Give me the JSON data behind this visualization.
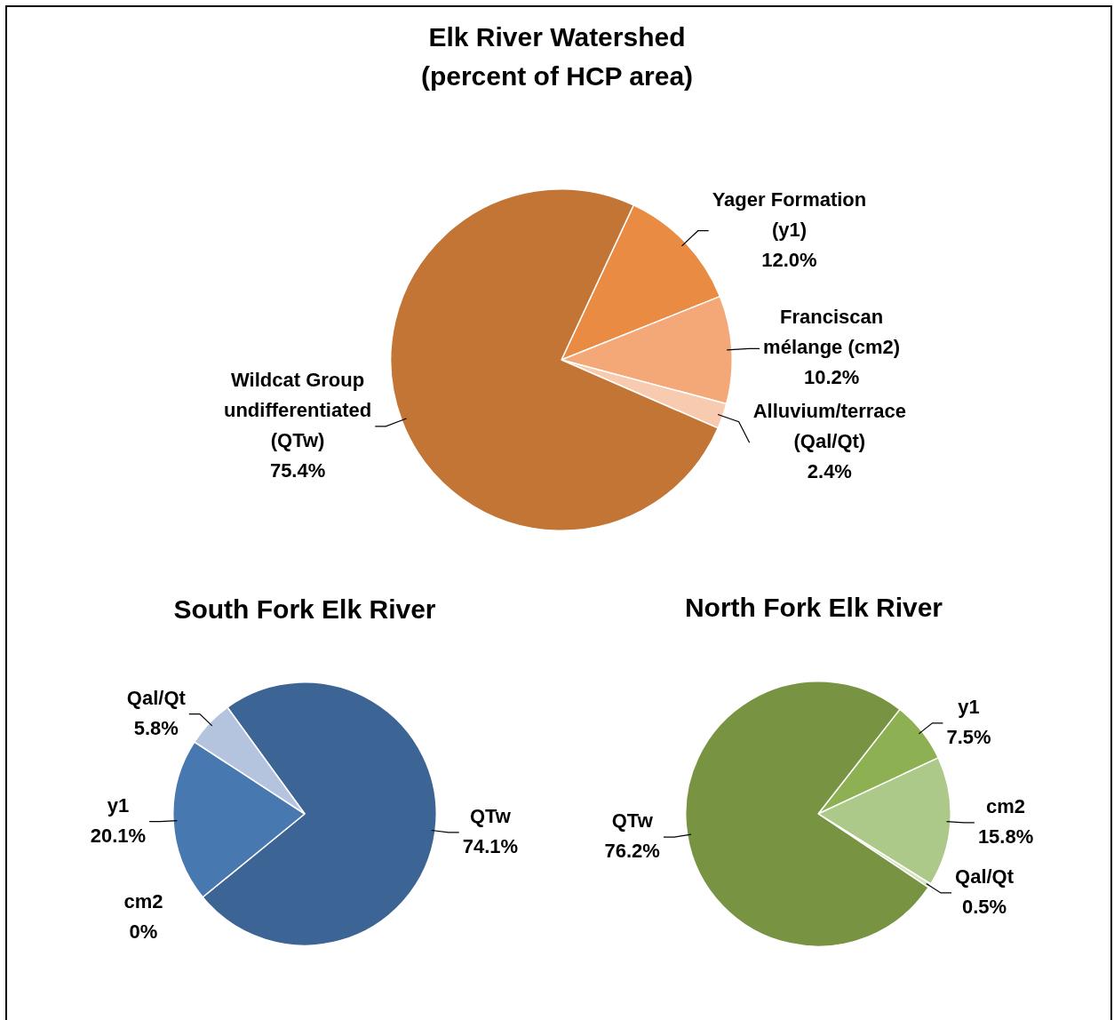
{
  "chart_data": [
    {
      "type": "pie",
      "title": "Elk River Watershed",
      "subtitle": "(percent of HCP area)",
      "categories": [
        "Yager Formation (y1)",
        "Franciscan mélange (cm2)",
        "Alluvium/terrace (Qal/Qt)",
        "Wildcat Group undifferentiated (QTw)"
      ],
      "values": [
        12.0,
        10.2,
        2.4,
        75.4
      ],
      "value_labels": [
        "12.0%",
        "10.2%",
        "2.4%",
        "75.4%"
      ],
      "colors": [
        "#e98b42",
        "#f5a877",
        "#f8cbb0",
        "#c27535"
      ],
      "legend": false
    },
    {
      "type": "pie",
      "title": "South Fork Elk River",
      "categories": [
        "QTw",
        "cm2",
        "y1",
        "Qal/Qt"
      ],
      "values": [
        74.1,
        0,
        20.1,
        5.8
      ],
      "value_labels": [
        "74.1%",
        "0%",
        "20.1%",
        "5.8%"
      ],
      "colors": [
        "#3c6494",
        "#6f94c8",
        "#4878b0",
        "#b4c4de"
      ],
      "legend": false
    },
    {
      "type": "pie",
      "title": "North Fork Elk River",
      "categories": [
        "y1",
        "cm2",
        "Qal/Qt",
        "QTw"
      ],
      "values": [
        7.5,
        15.8,
        0.5,
        76.2
      ],
      "value_labels": [
        "7.5%",
        "15.8%",
        "0.5%",
        "76.2%"
      ],
      "colors": [
        "#8db052",
        "#adc98a",
        "#d5e3c0",
        "#789443"
      ],
      "legend": false
    }
  ]
}
